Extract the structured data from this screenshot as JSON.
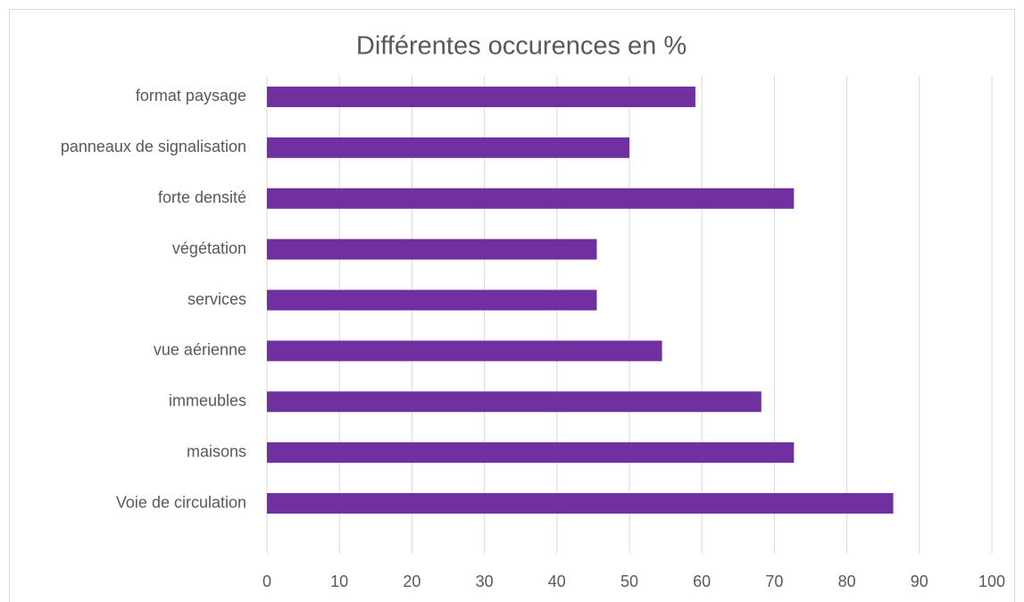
{
  "chart_data": {
    "type": "bar",
    "orientation": "horizontal",
    "title": "Différentes occurences en %",
    "categories": [
      "format paysage",
      "panneaux de signalisation",
      "forte densité",
      "végétation",
      "services",
      "vue aérienne",
      "immeubles",
      "maisons",
      "Voie de circulation"
    ],
    "values": [
      59.1,
      50,
      72.7,
      45.5,
      45.5,
      54.5,
      68.2,
      72.7,
      86.4
    ],
    "color": "#7030a0",
    "xlim": [
      0,
      100
    ],
    "xticks": [
      0,
      10,
      20,
      30,
      40,
      50,
      60,
      70,
      80,
      90,
      100
    ],
    "grid": true
  }
}
